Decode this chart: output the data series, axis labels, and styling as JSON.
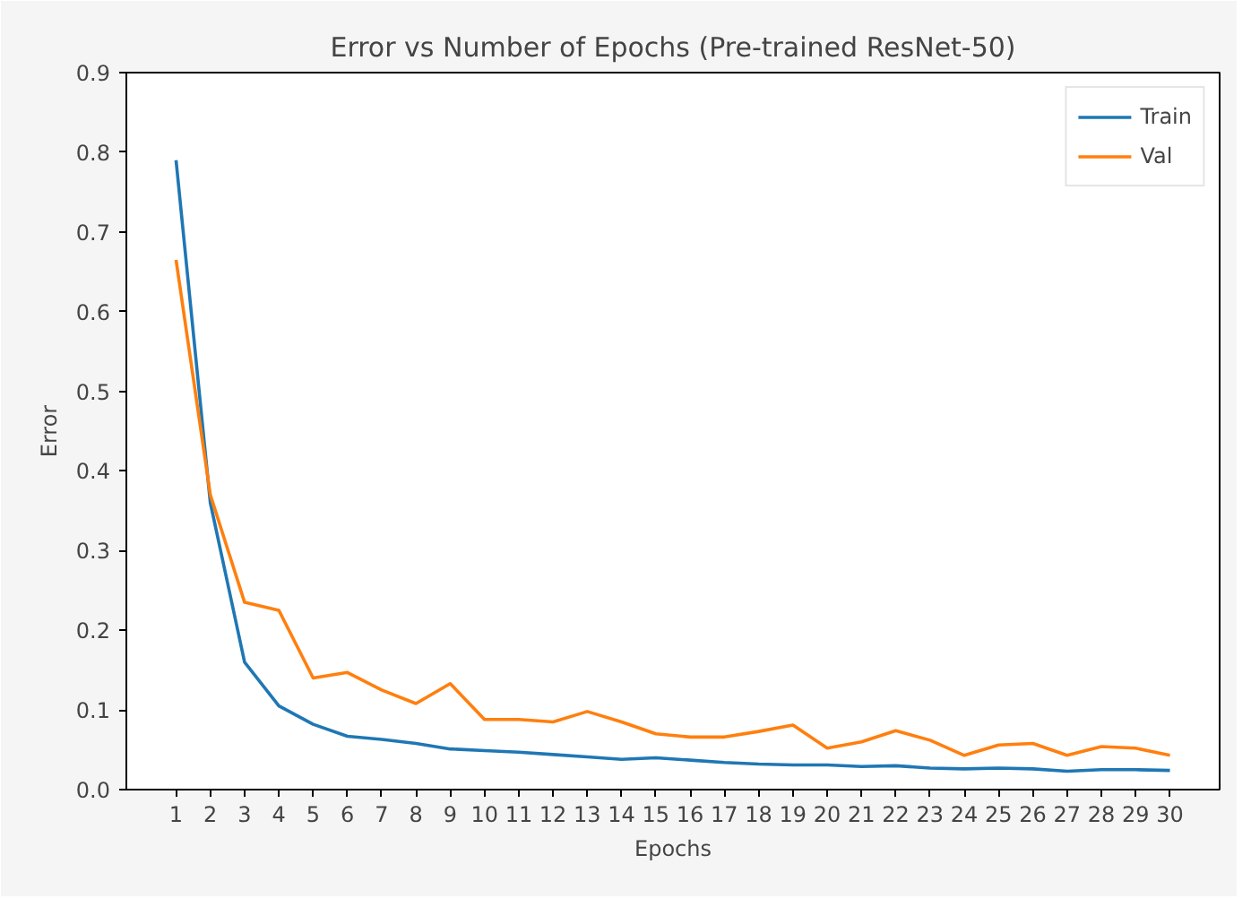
{
  "chart_data": {
    "type": "line",
    "title": "Error vs Number of Epochs (Pre-trained ResNet-50)",
    "xlabel": "Epochs",
    "ylabel": "Error",
    "x": [
      1,
      2,
      3,
      4,
      5,
      6,
      7,
      8,
      9,
      10,
      11,
      12,
      13,
      14,
      15,
      16,
      17,
      18,
      19,
      20,
      21,
      22,
      23,
      24,
      25,
      26,
      27,
      28,
      29,
      30
    ],
    "series": [
      {
        "name": "Train",
        "color": "#1f77b4",
        "values": [
          0.79,
          0.36,
          0.16,
          0.105,
          0.082,
          0.067,
          0.063,
          0.058,
          0.051,
          0.049,
          0.047,
          0.044,
          0.041,
          0.038,
          0.04,
          0.037,
          0.034,
          0.032,
          0.031,
          0.031,
          0.029,
          0.03,
          0.027,
          0.026,
          0.027,
          0.026,
          0.023,
          0.025,
          0.025,
          0.024
        ]
      },
      {
        "name": "Val",
        "color": "#ff7f0e",
        "values": [
          0.665,
          0.37,
          0.235,
          0.225,
          0.14,
          0.147,
          0.125,
          0.108,
          0.133,
          0.088,
          0.088,
          0.085,
          0.098,
          0.085,
          0.07,
          0.066,
          0.066,
          0.073,
          0.081,
          0.052,
          0.06,
          0.074,
          0.062,
          0.043,
          0.056,
          0.058,
          0.043,
          0.054,
          0.052,
          0.043
        ]
      }
    ],
    "xlim": [
      -0.45,
      31.45
    ],
    "ylim": [
      0,
      0.9
    ],
    "xticks": [
      1,
      2,
      3,
      4,
      5,
      6,
      7,
      8,
      9,
      10,
      11,
      12,
      13,
      14,
      15,
      16,
      17,
      18,
      19,
      20,
      21,
      22,
      23,
      24,
      25,
      26,
      27,
      28,
      29,
      30
    ],
    "yticks": [
      {
        "value": 0,
        "label": "0.0"
      },
      0.1,
      0.2,
      0.3,
      0.4,
      0.5,
      0.6,
      0.7,
      0.8,
      0.9
    ],
    "grid": false,
    "legend": "top right",
    "marker": "none",
    "line_style": "solid"
  }
}
